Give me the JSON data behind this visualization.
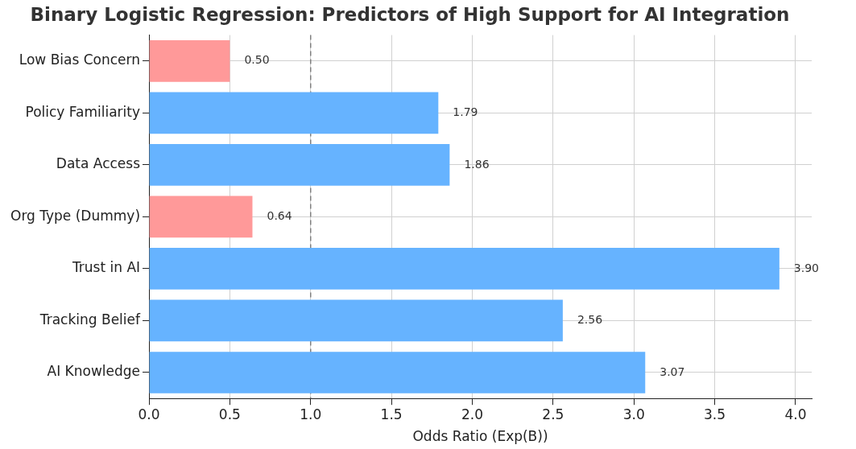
{
  "chart_data": {
    "type": "bar",
    "orientation": "horizontal",
    "title": "Binary Logistic Regression: Predictors of High Support for AI Integration",
    "xlabel": "Odds Ratio (Exp(B))",
    "categories": [
      "Low Bias Concern",
      "Policy Familiarity",
      "Data Access",
      "Org Type (Dummy)",
      "Trust in AI",
      "Tracking Belief",
      "AI Knowledge"
    ],
    "values": [
      0.5,
      1.79,
      1.86,
      0.64,
      3.9,
      2.56,
      3.07
    ],
    "colors": [
      "#ff9999",
      "#66b3ff",
      "#66b3ff",
      "#ff9999",
      "#66b3ff",
      "#66b3ff",
      "#66b3ff"
    ],
    "value_labels": [
      "0.50",
      "1.79",
      "1.86",
      "0.64",
      "3.90",
      "2.56",
      "3.07"
    ],
    "xlim": [
      0,
      4.1
    ],
    "xticks": [
      {
        "value": 0,
        "label": "0.0"
      },
      {
        "value": 0.5,
        "label": "0.5"
      },
      {
        "value": 1,
        "label": "1.0"
      },
      {
        "value": 1.5,
        "label": "1.5"
      },
      {
        "value": 2,
        "label": "2.0"
      },
      {
        "value": 2.5,
        "label": "2.5"
      },
      {
        "value": 3,
        "label": "3.0"
      },
      {
        "value": 3.5,
        "label": "3.5"
      },
      {
        "value": 4,
        "label": "4.0"
      }
    ],
    "ref_lines": [
      {
        "axis": "x",
        "value": 1,
        "color": "#808080",
        "line_style": "dashed"
      }
    ],
    "grid": true,
    "legend": false
  }
}
